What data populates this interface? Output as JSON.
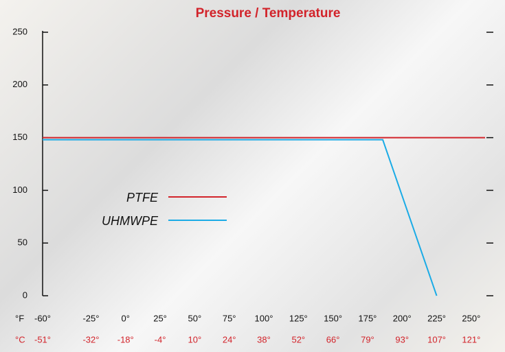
{
  "chart_data": {
    "type": "line",
    "title": "Pressure / Temperature",
    "x_unit_label": "°F",
    "x2_unit_label": "°C",
    "xlim": [
      -60,
      260
    ],
    "xticks": [
      {
        "value": -60,
        "label": "-60°"
      },
      {
        "value": -25,
        "label": "-25°"
      },
      {
        "value": 0,
        "label": "0°"
      },
      {
        "value": 25,
        "label": "25°"
      },
      {
        "value": 50,
        "label": "50°"
      },
      {
        "value": 75,
        "label": "75°"
      },
      {
        "value": 100,
        "label": "100°"
      },
      {
        "value": 125,
        "label": "125°"
      },
      {
        "value": 150,
        "label": "150°"
      },
      {
        "value": 175,
        "label": "175°"
      },
      {
        "value": 200,
        "label": "200°"
      },
      {
        "value": 225,
        "label": "225°"
      },
      {
        "value": 250,
        "label": "250°"
      }
    ],
    "x2ticks": [
      {
        "value": -51,
        "label": "-51°"
      },
      {
        "value": -32,
        "label": "-32°"
      },
      {
        "value": -18,
        "label": "-18°"
      },
      {
        "value": -4,
        "label": "-4°"
      },
      {
        "value": 10,
        "label": "10°"
      },
      {
        "value": 24,
        "label": "24°"
      },
      {
        "value": 38,
        "label": "38°"
      },
      {
        "value": 52,
        "label": "52°"
      },
      {
        "value": 66,
        "label": "66°"
      },
      {
        "value": 79,
        "label": "79°"
      },
      {
        "value": 93,
        "label": "93°"
      },
      {
        "value": 107,
        "label": "107°"
      },
      {
        "value": 121,
        "label": "121°"
      }
    ],
    "ylim": [
      0,
      250
    ],
    "yticks": [
      0,
      50,
      100,
      150,
      200,
      250
    ],
    "legend": "center-left",
    "series": [
      {
        "name": "PTFE",
        "color": "#d2232a",
        "x": [
          -60,
          260
        ],
        "values": [
          150,
          150
        ]
      },
      {
        "name": "UHMWPE",
        "color": "#1aabe6",
        "x": [
          -60,
          186,
          225
        ],
        "values": [
          148,
          148,
          0
        ]
      }
    ]
  }
}
